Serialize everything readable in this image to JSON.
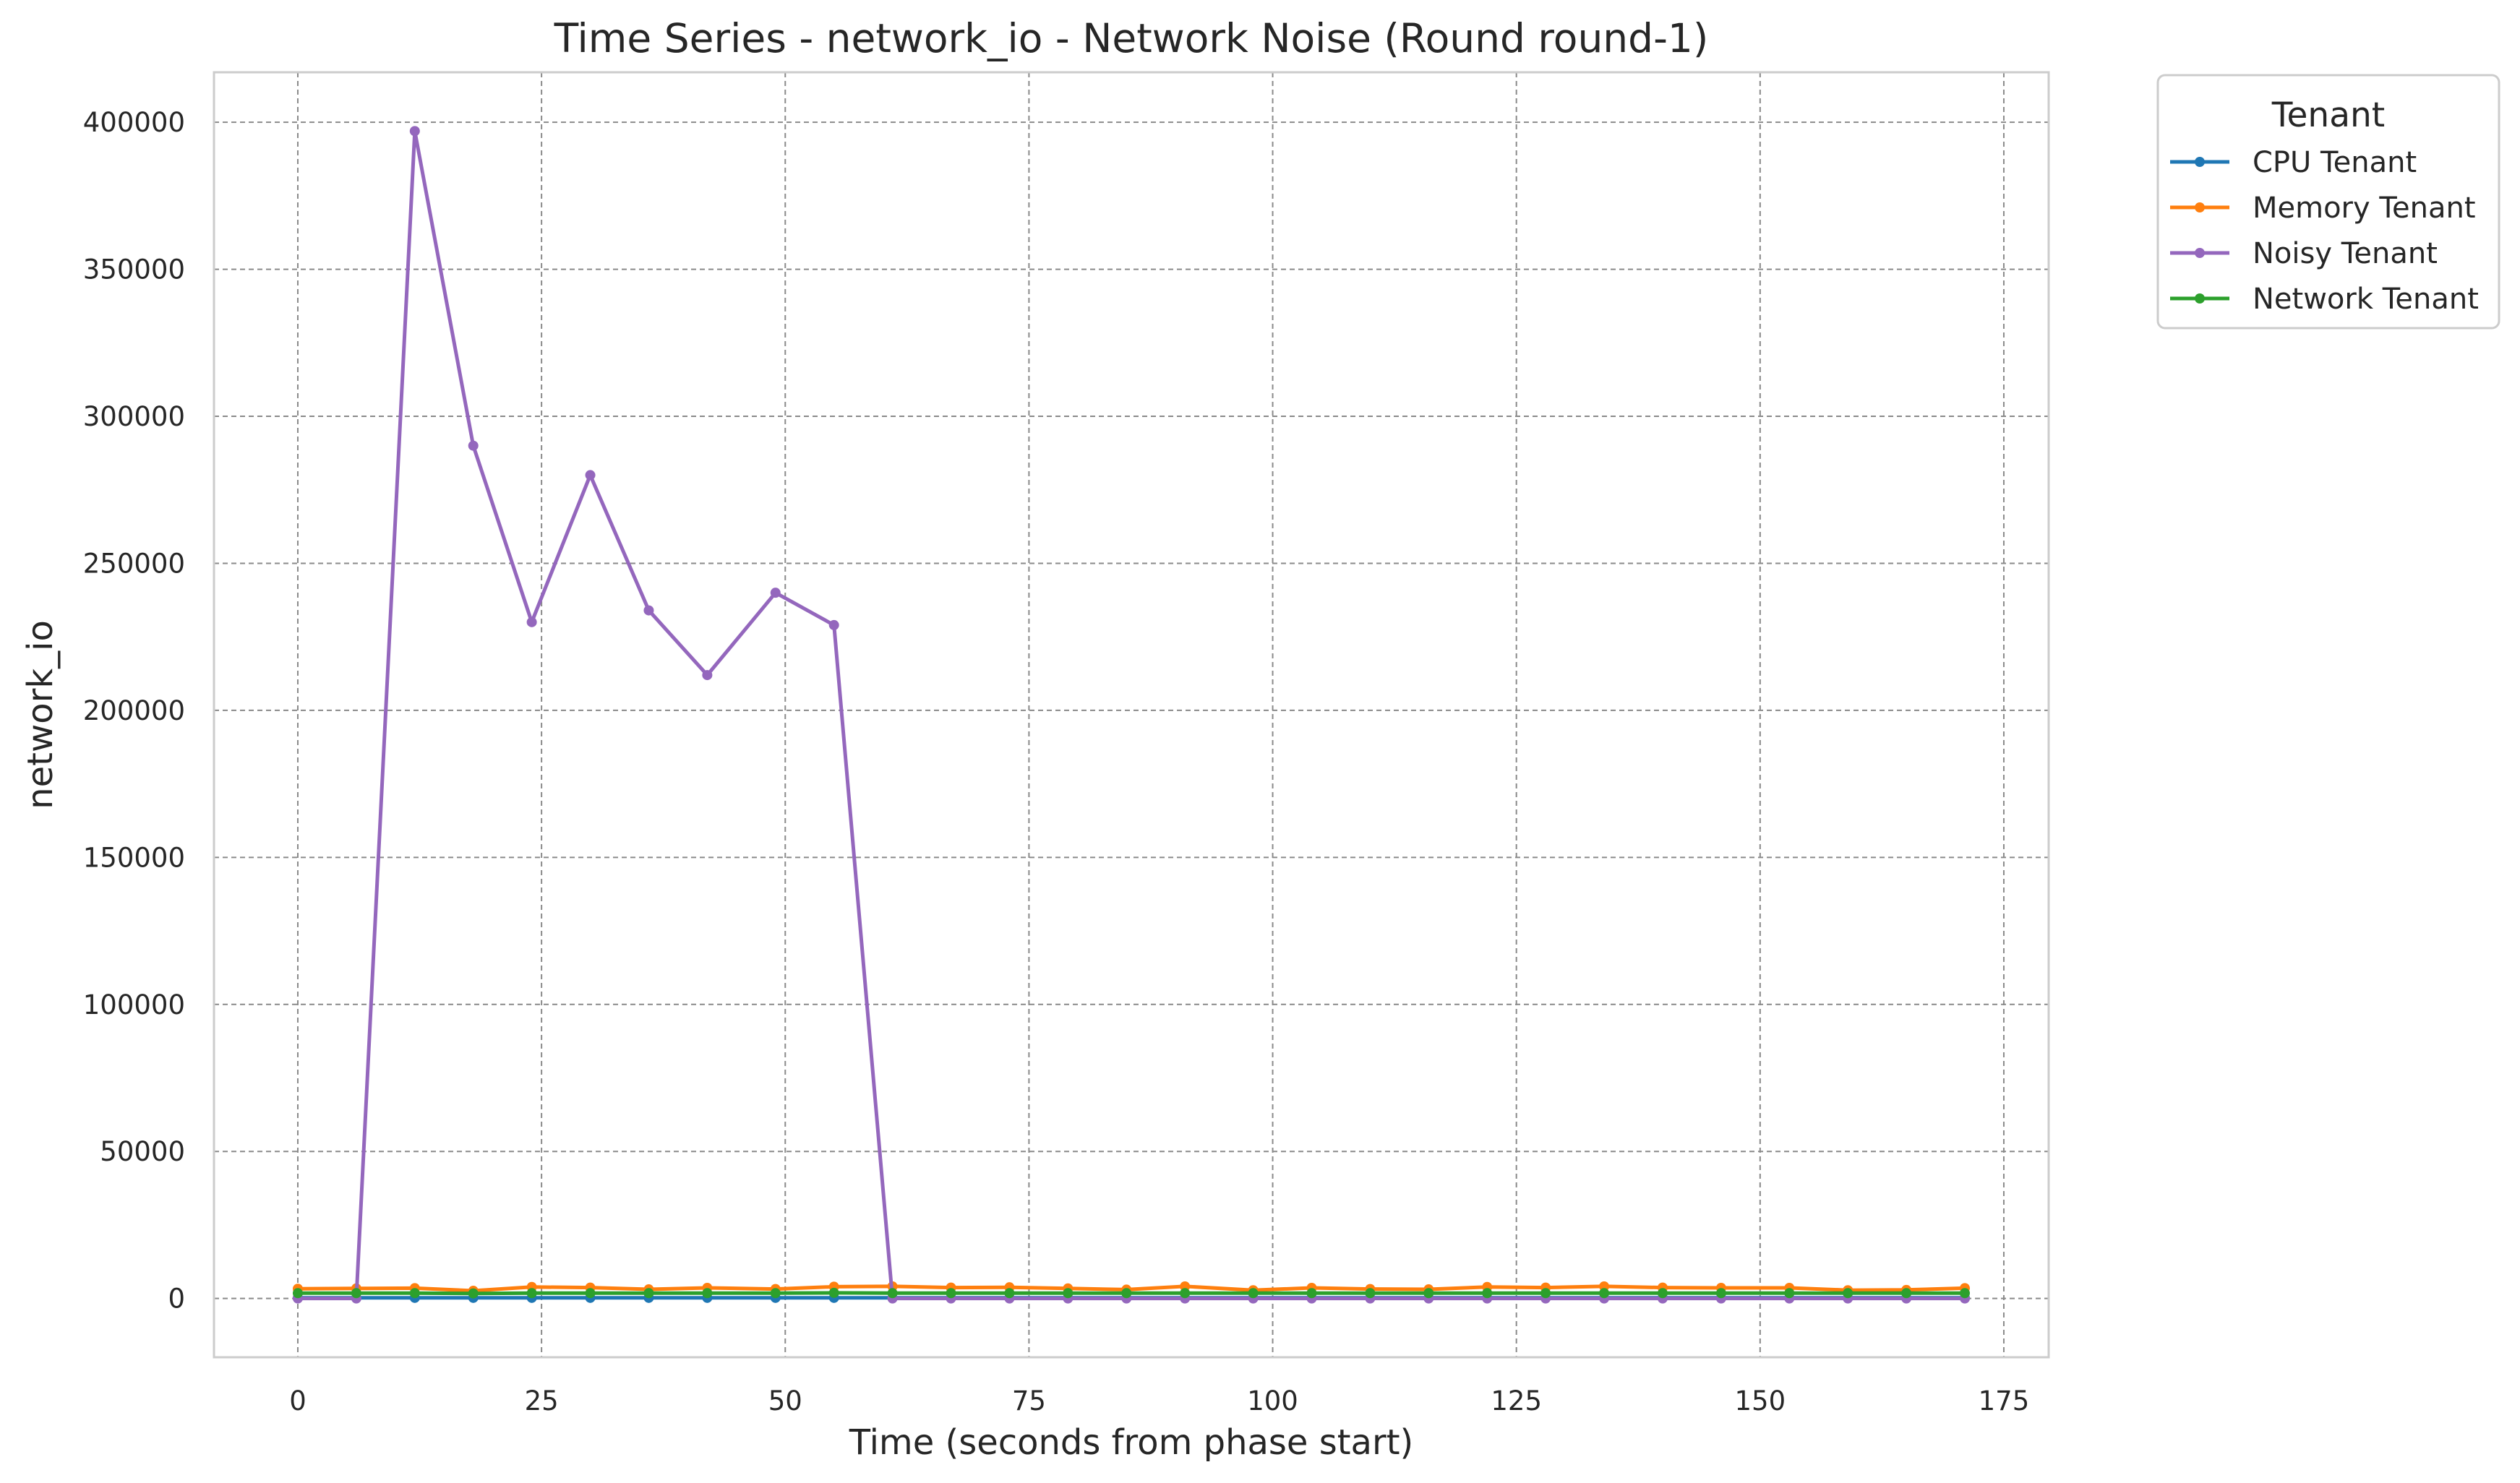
{
  "chart_data": {
    "type": "line",
    "title": "Time Series - network_io - Network Noise (Round round-1)",
    "xlabel": "Time (seconds from phase start)",
    "ylabel": "network_io",
    "xlim": [
      -8.6,
      179.6
    ],
    "ylim": [
      -20000,
      417000
    ],
    "xticks": [
      0,
      25,
      50,
      75,
      100,
      125,
      150,
      175
    ],
    "yticks": [
      0,
      50000,
      100000,
      150000,
      200000,
      250000,
      300000,
      350000,
      400000
    ],
    "grid": true,
    "legend": {
      "title": "Tenant",
      "placement": "outside-top-right"
    },
    "x": [
      0,
      6,
      12,
      18,
      24,
      30,
      36,
      42,
      49,
      55,
      61,
      67,
      73,
      79,
      85,
      91,
      98,
      104,
      110,
      116,
      122,
      128,
      134,
      140,
      146,
      153,
      159,
      165,
      171
    ],
    "series": [
      {
        "name": "CPU Tenant",
        "color": "#1f77b4",
        "values": [
          200,
          200,
          200,
          200,
          200,
          200,
          200,
          200,
          200,
          200,
          200,
          200,
          200,
          200,
          200,
          200,
          200,
          200,
          200,
          200,
          200,
          200,
          200,
          200,
          200,
          200,
          200,
          200,
          200
        ]
      },
      {
        "name": "Memory Tenant",
        "color": "#ff7f0e",
        "values": [
          3300,
          3400,
          3500,
          2600,
          3900,
          3700,
          3100,
          3600,
          3200,
          4000,
          4100,
          3700,
          3800,
          3400,
          3000,
          4100,
          2800,
          3600,
          3200,
          3100,
          3900,
          3700,
          4100,
          3700,
          3600,
          3600,
          2800,
          2900,
          3500
        ]
      },
      {
        "name": "Noisy Tenant",
        "color": "#9467bd",
        "values": [
          0,
          0,
          397000,
          290000,
          230000,
          280000,
          234000,
          212000,
          240000,
          229000,
          0,
          0,
          0,
          0,
          0,
          0,
          0,
          0,
          0,
          0,
          0,
          0,
          0,
          0,
          0,
          0,
          0,
          0,
          0
        ]
      },
      {
        "name": "Network Tenant",
        "color": "#2ca02c",
        "values": [
          1800,
          1800,
          1800,
          1700,
          1800,
          1800,
          1800,
          1800,
          1800,
          1900,
          1800,
          1800,
          1800,
          1800,
          1800,
          1800,
          1800,
          1800,
          1800,
          1800,
          1800,
          1800,
          1800,
          1800,
          1800,
          1800,
          1800,
          1800,
          1800
        ]
      }
    ]
  }
}
